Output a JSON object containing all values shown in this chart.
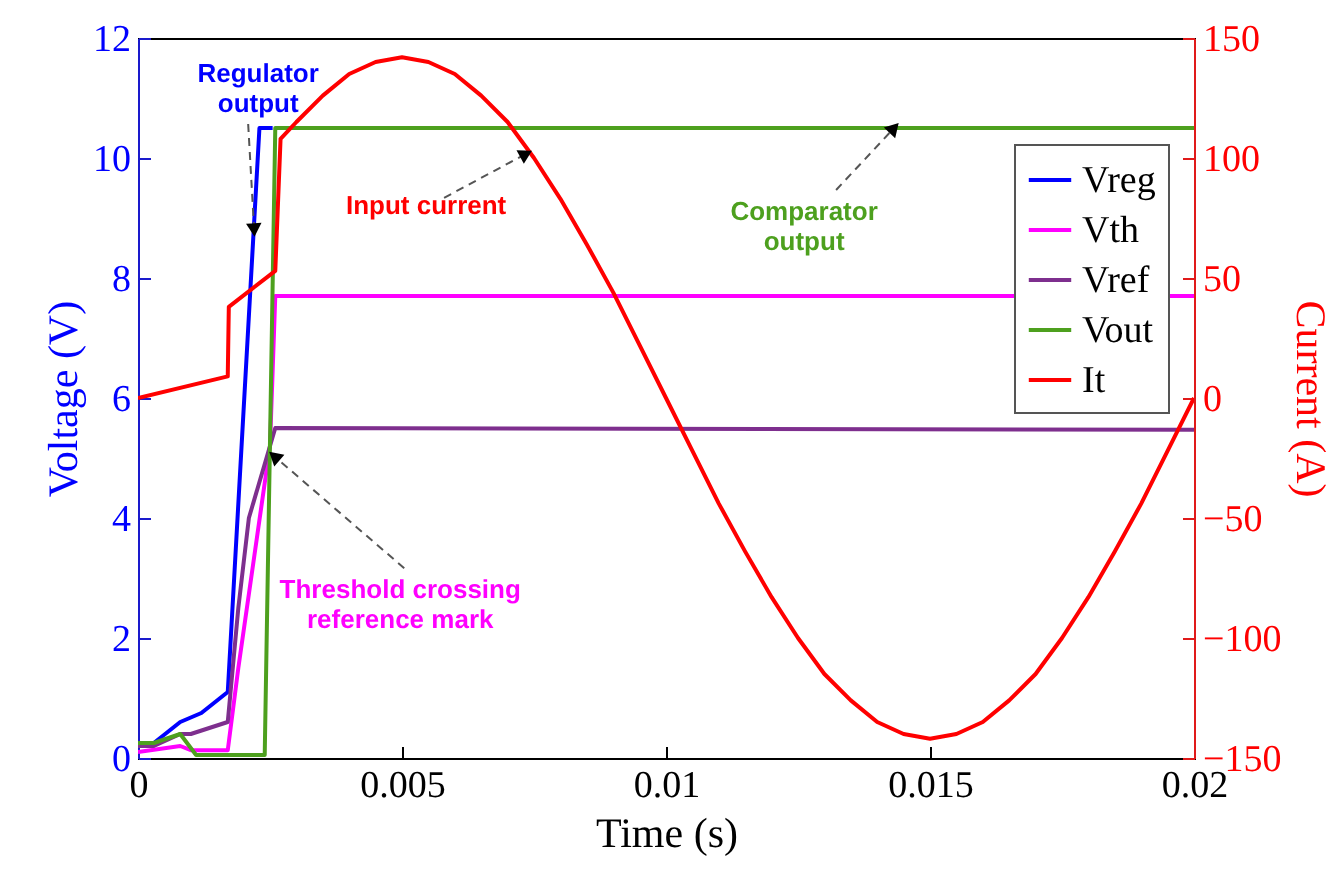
{
  "chart_data": {
    "type": "line",
    "xlabel": "Time (s)",
    "ylabel": "Voltage (V)",
    "y2label": "Current (A)",
    "xlim": [
      0,
      0.02
    ],
    "xticks": [
      0,
      0.005,
      0.01,
      0.015,
      0.02
    ],
    "ylim": [
      0,
      12
    ],
    "yticks": [
      0,
      2,
      4,
      6,
      8,
      10,
      12
    ],
    "y2lim": [
      -150,
      150
    ],
    "y2ticks": [
      -150,
      -100,
      -50,
      0,
      50,
      100,
      150
    ],
    "grid": false,
    "legend": "top right",
    "line_style": "solid",
    "marker": "none",
    "series": [
      {
        "name": "Vreg",
        "color": "#0000ff",
        "x": [
          0,
          0.0003,
          0.0008,
          0.0012,
          0.0017,
          0.0023,
          0.00255
        ],
        "values": [
          0.25,
          0.25,
          0.6,
          0.75,
          1.1,
          10.5,
          10.5
        ]
      },
      {
        "name": "Vth",
        "color": "#ff00ff",
        "x": [
          0,
          0.0008,
          0.001,
          0.0017,
          0.0019,
          0.0025,
          0.0026,
          0.02
        ],
        "values": [
          0.1,
          0.2,
          0.13,
          0.13,
          1.5,
          5.2,
          7.7,
          7.7
        ]
      },
      {
        "name": "Vref",
        "color": "#7e2f8e",
        "x": [
          0,
          0.0003,
          0.0008,
          0.001,
          0.0017,
          0.0019,
          0.0021,
          0.0025,
          0.0026,
          0.02
        ],
        "values": [
          0.2,
          0.2,
          0.4,
          0.4,
          0.6,
          2.5,
          4,
          5.2,
          5.5,
          5.47
        ]
      },
      {
        "name": "Vout",
        "color": "#4da01e",
        "x": [
          0,
          0.0003,
          0.0008,
          0.0011,
          0.0024,
          0.0026,
          0.02
        ],
        "values": [
          0.25,
          0.25,
          0.4,
          0.05,
          0.05,
          10.5,
          10.5
        ]
      },
      {
        "name": "It",
        "color": "#ff0000",
        "axis": "y2",
        "x": [
          0,
          0.0017,
          0.00172,
          0.0026,
          0.0027,
          0.003,
          0.0035,
          0.004,
          0.0045,
          0.005,
          0.0055,
          0.006,
          0.0065,
          0.007,
          0.0075,
          0.008,
          0.0085,
          0.009,
          0.0095,
          0.01,
          0.0105,
          0.011,
          0.0115,
          0.012,
          0.0125,
          0.013,
          0.0135,
          0.014,
          0.0145,
          0.015,
          0.0155,
          0.016,
          0.0165,
          0.017,
          0.0175,
          0.018,
          0.0185,
          0.019,
          0.0195,
          0.02
        ],
        "values": [
          0,
          9,
          38,
          53,
          108,
          115,
          126,
          135,
          140,
          142,
          140,
          135,
          126,
          115,
          100,
          83,
          64,
          44,
          22,
          0,
          -22,
          -44,
          -64,
          -83,
          -100,
          -115,
          -126,
          -135,
          -140,
          -142,
          -140,
          -135,
          -126,
          -115,
          -100,
          -83,
          -64,
          -44,
          -22,
          0
        ]
      }
    ],
    "annotations": [
      {
        "text": "Regulator\noutput",
        "x": 0.0022,
        "y": 8.8
      },
      {
        "text": "Input current",
        "x": 0.00735,
        "y": 10.07
      },
      {
        "text": "Comparator\noutput",
        "x": 0.01432,
        "y": 10.5
      },
      {
        "text": "Threshold crossing\nreference mark",
        "x": 0.00258,
        "y": 5.03
      }
    ]
  }
}
